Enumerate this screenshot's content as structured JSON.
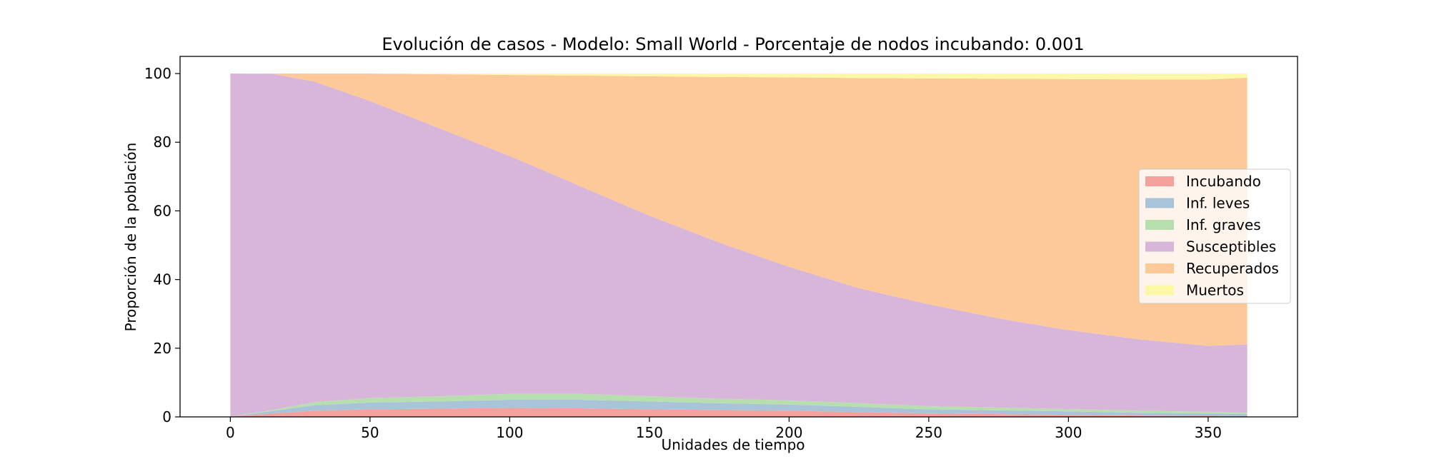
{
  "chart_data": {
    "type": "area",
    "stacked": true,
    "title": "Evolución de casos - Modelo: Small World - Porcentaje de nodos incubando: 0.001",
    "xlabel": "Unidades de tiempo",
    "ylabel": "Proporción de la población",
    "xlim": [
      -18,
      382
    ],
    "ylim": [
      0,
      105
    ],
    "xticks": [
      0,
      50,
      100,
      150,
      200,
      250,
      300,
      350
    ],
    "yticks": [
      0,
      20,
      40,
      60,
      80,
      100
    ],
    "grid": false,
    "legend_position": "center-right",
    "x": [
      0,
      15,
      30,
      50,
      75,
      100,
      125,
      150,
      175,
      200,
      225,
      250,
      275,
      300,
      325,
      350,
      364
    ],
    "series": [
      {
        "name": "Incubando",
        "color": "#f4a09c",
        "values": [
          0.1,
          1.0,
          1.8,
          2.2,
          2.4,
          2.6,
          2.5,
          2.2,
          2.0,
          1.8,
          1.4,
          1.0,
          0.8,
          0.6,
          0.4,
          0.3,
          0.2
        ]
      },
      {
        "name": "Inf. leves",
        "color": "#a9c3d9",
        "values": [
          0.0,
          0.7,
          1.6,
          2.0,
          2.1,
          2.4,
          2.5,
          2.3,
          2.0,
          1.8,
          1.5,
          1.2,
          1.1,
          1.0,
          0.8,
          0.7,
          0.6
        ]
      },
      {
        "name": "Inf. graves",
        "color": "#b7dfae",
        "values": [
          0.0,
          0.3,
          0.9,
          1.3,
          1.5,
          1.7,
          1.7,
          1.5,
          1.3,
          1.2,
          1.1,
          0.9,
          0.8,
          0.7,
          0.6,
          0.5,
          0.4
        ]
      },
      {
        "name": "Susceptibles",
        "color": "#d7b6d9",
        "values": [
          99.9,
          97.9,
          93.4,
          86.5,
          78.0,
          69.3,
          60.6,
          52.6,
          45.5,
          38.9,
          33.5,
          29.7,
          26.0,
          23.0,
          20.8,
          19.2,
          19.9
        ]
      },
      {
        "name": "Recuperados",
        "color": "#fec999",
        "values": [
          0.0,
          0.1,
          2.3,
          8.0,
          15.8,
          23.6,
          32.1,
          40.6,
          48.2,
          55.2,
          61.2,
          65.8,
          69.8,
          73.1,
          75.7,
          77.6,
          77.7
        ]
      },
      {
        "name": "Muertos",
        "color": "#fdf8a6",
        "values": [
          0.0,
          0.0,
          0.0,
          0.0,
          0.2,
          0.4,
          0.6,
          0.8,
          1.0,
          1.1,
          1.3,
          1.4,
          1.5,
          1.6,
          1.7,
          1.7,
          1.2
        ]
      }
    ]
  }
}
